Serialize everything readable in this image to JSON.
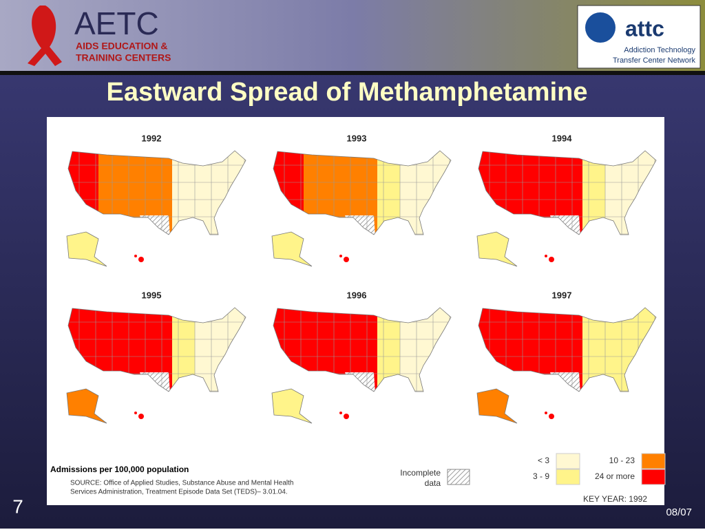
{
  "header": {
    "aetc_logo": {
      "name": "AETC",
      "subtitle_lines": [
        "AIDS EDUCATION &",
        "TRAINING CENTERS"
      ]
    },
    "attc_logo": {
      "name": "attc",
      "subtitle_lines": [
        "Addiction Technology",
        "Transfer Center Network"
      ]
    }
  },
  "title": "Eastward Spread of Methamphetamine",
  "maps": [
    {
      "year": "1992"
    },
    {
      "year": "1993"
    },
    {
      "year": "1994"
    },
    {
      "year": "1995"
    },
    {
      "year": "1996"
    },
    {
      "year": "1997"
    }
  ],
  "legend": {
    "caption": "Admissions per 100,000 population",
    "incomplete_lines": [
      "Incomplete",
      "data"
    ],
    "items": [
      {
        "label": "< 3",
        "color": "#fff8d2"
      },
      {
        "label": "3 - 9",
        "color": "#fff48a"
      },
      {
        "label": "10 - 23",
        "color": "#ff8000"
      },
      {
        "label": "24 or more",
        "color": "#ff0000"
      }
    ],
    "key_year": "KEY YEAR: 1992"
  },
  "source_lines": [
    "SOURCE: Office of Applied Studies, Substance Abuse and Mental Health",
    "Services Administration, Treatment Episode Data Set (TEDS)– 3.01.04."
  ],
  "footer": {
    "slide_number": "7",
    "date": "08/07"
  }
}
